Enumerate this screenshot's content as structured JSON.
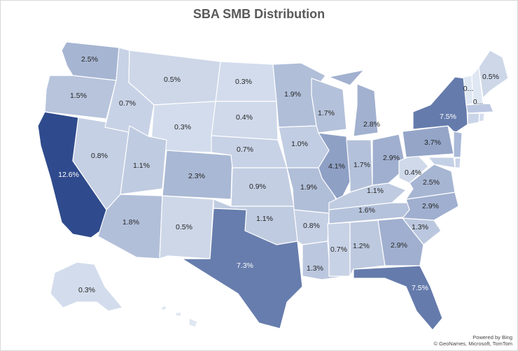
{
  "title": "SBA SMB Distribution",
  "attribution": {
    "line1": "Powered by Bing",
    "line2": "© GeoNames, Microsoft, TomTom"
  },
  "colors": {
    "min": "#dfe7f3",
    "max": "#2f4b8d",
    "label_dark": "#262626",
    "label_light": "#ffffff",
    "border": "#ffffff"
  },
  "states": {
    "WA": "2.5%",
    "OR": "1.5%",
    "CA": "12.6%",
    "NV": "0.8%",
    "ID": "0.7%",
    "MT": "0.5%",
    "WY": "0.3%",
    "UT": "1.1%",
    "AZ": "1.8%",
    "CO": "2.3%",
    "NM": "0.5%",
    "ND": "0.3%",
    "SD": "0.4%",
    "NE": "0.7%",
    "KS": "0.9%",
    "OK": "1.1%",
    "TX": "7.3%",
    "MN": "1.9%",
    "IA": "1.0%",
    "MO": "1.9%",
    "AR": "0.8%",
    "LA": "1.3%",
    "WI": "1.7%",
    "IL": "4.1%",
    "MI": "2.8%",
    "IN": "1.7%",
    "OH": "2.9%",
    "KY": "1.1%",
    "TN": "1.6%",
    "MS": "0.7%",
    "AL": "1.2%",
    "GA": "2.9%",
    "FL": "7.5%",
    "SC": "1.3%",
    "NC": "2.9%",
    "VA": "2.5%",
    "WV": "0.4%",
    "PA": "3.7%",
    "NY": "7.5%",
    "ME": "0.5%",
    "VT": "0...",
    "NH": "0...",
    "AK": "0.3%"
  }
}
